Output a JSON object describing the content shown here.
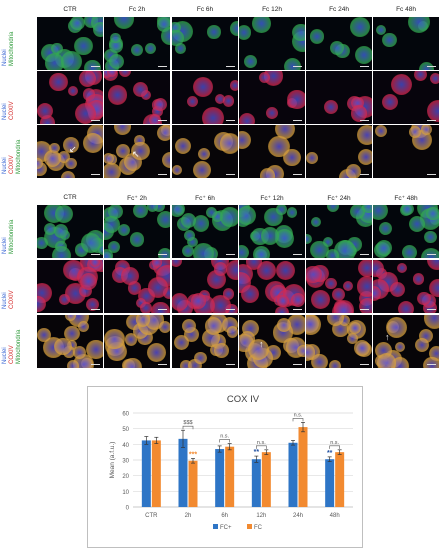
{
  "figure": {
    "panel_a": {
      "columns": [
        "CTR",
        "Fc 2h",
        "Fc 6h",
        "Fc 12h",
        "Fc 24h",
        "Fc 48h"
      ],
      "rows": [
        {
          "labels": [
            {
              "text": "Nuclei",
              "color": "#3a66d4"
            },
            {
              "text": "Mitochondria",
              "color": "#2e9a3a"
            }
          ]
        },
        {
          "labels": [
            {
              "text": "Nuclei",
              "color": "#3a66d4"
            },
            {
              "text": "COXIV",
              "color": "#d42a2a"
            }
          ]
        },
        {
          "labels": [
            {
              "text": "Nuclei",
              "color": "#3a66d4"
            },
            {
              "text": "COXIV",
              "color": "#d42a2a"
            },
            {
              "text": "Mitochondria",
              "color": "#2e9a3a"
            }
          ]
        }
      ]
    },
    "panel_b": {
      "columns": [
        "CTR",
        "Fc⁺ 2h",
        "Fc⁺ 6h",
        "Fc⁺ 12h",
        "Fc⁺ 24h",
        "Fc⁺ 48h"
      ],
      "rows": [
        {
          "labels": [
            {
              "text": "Nuclei",
              "color": "#3a66d4"
            },
            {
              "text": "Mitochondria",
              "color": "#2e9a3a"
            }
          ]
        },
        {
          "labels": [
            {
              "text": "Nuclei",
              "color": "#3a66d4"
            },
            {
              "text": "COXIV",
              "color": "#d42a2a"
            }
          ]
        },
        {
          "labels": [
            {
              "text": "Nuclei",
              "color": "#3a66d4"
            },
            {
              "text": "COXIV",
              "color": "#d42a2a"
            },
            {
              "text": "Mitochondria",
              "color": "#2e9a3a"
            }
          ]
        }
      ]
    }
  },
  "chart_data": {
    "type": "bar",
    "title": "COX IV",
    "xlabel": "",
    "ylabel": "Mean (a.f.u.)",
    "ylim": [
      0,
      60
    ],
    "yticks": [
      0,
      10,
      20,
      30,
      40,
      50,
      60
    ],
    "grid": true,
    "legend_position": "bottom",
    "categories": [
      "CTR",
      "2h",
      "6h",
      "12h",
      "24h",
      "48h"
    ],
    "series": [
      {
        "name": "FC+",
        "color": "#2e75c6",
        "values": [
          42.5,
          43.5,
          37,
          30.5,
          41,
          30.5
        ],
        "errors": [
          2.5,
          5.5,
          2,
          2,
          1.5,
          1.5
        ]
      },
      {
        "name": "FC",
        "color": "#f28a30",
        "values": [
          42.5,
          29.5,
          38.5,
          35,
          51,
          35
        ],
        "errors": [
          2,
          1.5,
          2,
          1.5,
          3,
          1.5
        ]
      }
    ],
    "annotations": [
      {
        "category": "2h",
        "text": "$$$",
        "bracket": true,
        "color": "#555555"
      },
      {
        "category": "2h",
        "text": "***",
        "series": "FC",
        "color": "#f28a30"
      },
      {
        "category": "6h",
        "text": "n.s.",
        "bracket": true,
        "color": "#555555"
      },
      {
        "category": "12h",
        "text": "n.s.",
        "bracket": true,
        "color": "#555555"
      },
      {
        "category": "12h",
        "text": "**",
        "series": "FC+",
        "color": "#1f4fa0"
      },
      {
        "category": "24h",
        "text": "n.s.",
        "bracket": true,
        "color": "#555555"
      },
      {
        "category": "48h",
        "text": "n.s.",
        "bracket": true,
        "color": "#555555"
      },
      {
        "category": "48h",
        "text": "**",
        "series": "FC+",
        "color": "#1f4fa0"
      }
    ]
  }
}
